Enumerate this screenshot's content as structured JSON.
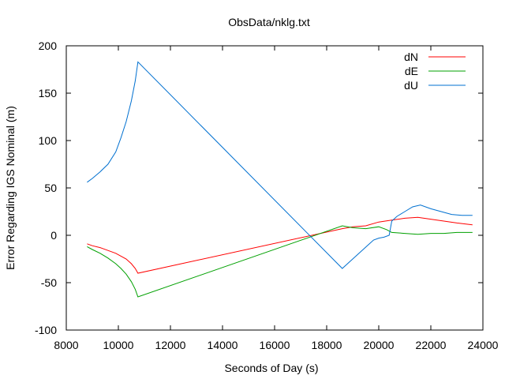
{
  "chart_data": {
    "type": "line",
    "title": "ObsData/nklg.txt",
    "xlabel": "Seconds of Day (s)",
    "ylabel": "Error Regarding IGS Nominal (m)",
    "xlim": [
      8000,
      24000
    ],
    "ylim": [
      -100,
      200
    ],
    "xticks": [
      8000,
      10000,
      12000,
      14000,
      16000,
      18000,
      20000,
      22000,
      24000
    ],
    "yticks": [
      -100,
      -50,
      0,
      50,
      100,
      150,
      200
    ],
    "grid": false,
    "legend_position": "top-right",
    "series": [
      {
        "name": "dN",
        "color": "#ff0000",
        "x": [
          8800,
          9000,
          9300,
          9600,
          9900,
          10100,
          10300,
          10500,
          10650,
          10750,
          18600,
          19000,
          19500,
          20000,
          20500,
          21000,
          21500,
          22000,
          22500,
          23000,
          23600
        ],
        "y": [
          -9,
          -11,
          -13,
          -16,
          -19,
          -22,
          -25,
          -30,
          -35,
          -40,
          7,
          9,
          10,
          14,
          16,
          18,
          19,
          17,
          15,
          13,
          11
        ]
      },
      {
        "name": "dE",
        "color": "#00a000",
        "x": [
          8800,
          9000,
          9300,
          9600,
          9900,
          10100,
          10300,
          10500,
          10650,
          10750,
          18600,
          19000,
          19500,
          20000,
          20300,
          20500,
          21000,
          21500,
          22000,
          22500,
          23000,
          23600
        ],
        "y": [
          -12,
          -15,
          -19,
          -24,
          -30,
          -35,
          -41,
          -49,
          -57,
          -65,
          10,
          8,
          7,
          9,
          6,
          3,
          2,
          1,
          2,
          2,
          3,
          3
        ]
      },
      {
        "name": "dU",
        "color": "#0070d0",
        "x": [
          8800,
          9000,
          9300,
          9600,
          9900,
          10100,
          10300,
          10500,
          10650,
          10750,
          18600,
          18800,
          19000,
          19200,
          19400,
          19600,
          19800,
          20000,
          20200,
          20400,
          20500,
          20700,
          21000,
          21300,
          21600,
          22000,
          22400,
          22800,
          23200,
          23600
        ],
        "y": [
          56,
          60,
          67,
          75,
          88,
          103,
          120,
          142,
          163,
          183,
          -35,
          -30,
          -25,
          -20,
          -15,
          -10,
          -5,
          -3,
          -2,
          0,
          15,
          20,
          25,
          30,
          32,
          28,
          25,
          22,
          21,
          21
        ]
      }
    ]
  }
}
